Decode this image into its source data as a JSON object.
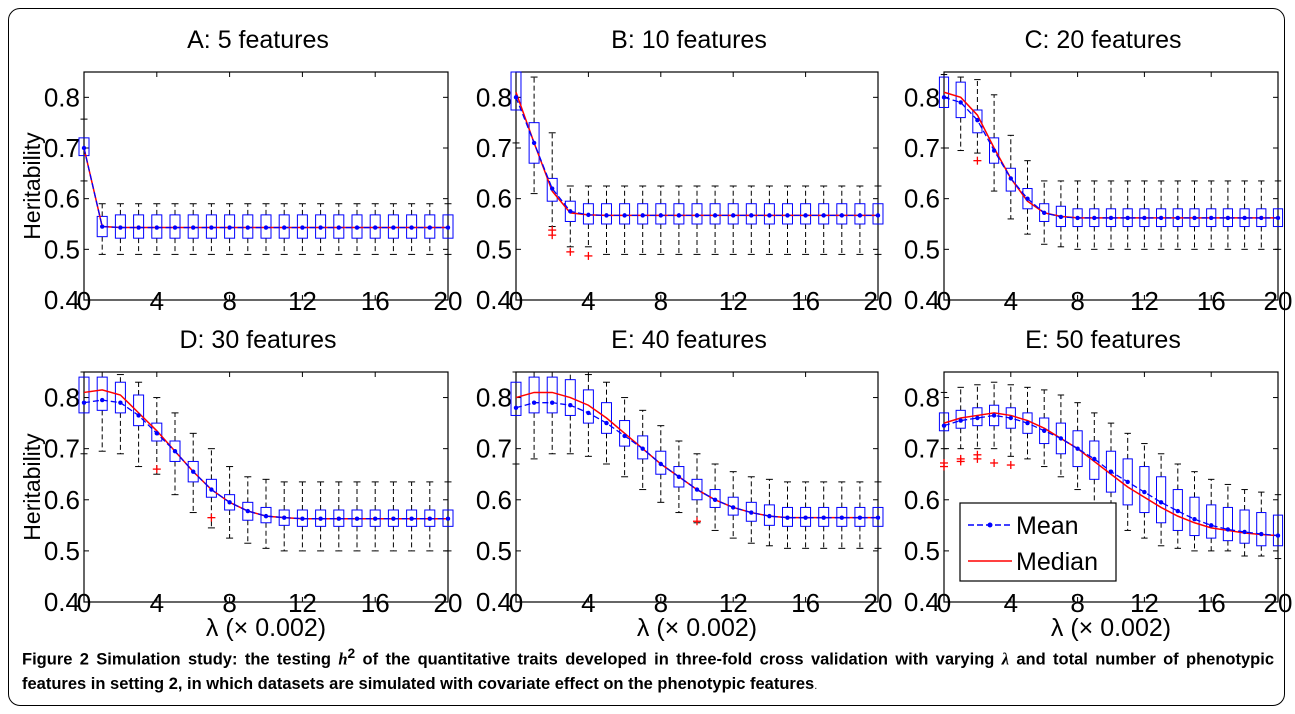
{
  "chart_data": [
    {
      "type": "box",
      "title": "A: 5 features",
      "ylabel": "Heritability",
      "xlabel": "",
      "xlim": [
        0,
        20
      ],
      "ylim": [
        0.4,
        0.85
      ],
      "xticks": [
        0,
        4,
        8,
        12,
        16,
        20
      ],
      "yticks": [
        0.4,
        0.5,
        0.6,
        0.7,
        0.8
      ],
      "x": [
        0,
        1,
        2,
        3,
        4,
        5,
        6,
        7,
        8,
        9,
        10,
        11,
        12,
        13,
        14,
        15,
        16,
        17,
        18,
        19,
        20
      ],
      "mean": [
        0.7,
        0.545,
        0.543,
        0.543,
        0.543,
        0.543,
        0.543,
        0.543,
        0.543,
        0.543,
        0.543,
        0.543,
        0.543,
        0.543,
        0.543,
        0.543,
        0.543,
        0.543,
        0.543,
        0.543,
        0.543
      ],
      "median": [
        0.7,
        0.545,
        0.543,
        0.543,
        0.543,
        0.543,
        0.543,
        0.543,
        0.543,
        0.543,
        0.543,
        0.543,
        0.543,
        0.543,
        0.543,
        0.543,
        0.543,
        0.543,
        0.543,
        0.543,
        0.543
      ],
      "q1": [
        0.685,
        0.525,
        0.522,
        0.522,
        0.522,
        0.522,
        0.522,
        0.522,
        0.522,
        0.522,
        0.522,
        0.522,
        0.522,
        0.522,
        0.522,
        0.522,
        0.522,
        0.522,
        0.522,
        0.522,
        0.522
      ],
      "q3": [
        0.72,
        0.565,
        0.568,
        0.568,
        0.568,
        0.568,
        0.568,
        0.568,
        0.568,
        0.568,
        0.568,
        0.568,
        0.568,
        0.568,
        0.568,
        0.568,
        0.568,
        0.568,
        0.568,
        0.568,
        0.568
      ],
      "lo": [
        0.635,
        0.49,
        0.49,
        0.49,
        0.49,
        0.49,
        0.49,
        0.49,
        0.49,
        0.49,
        0.49,
        0.49,
        0.49,
        0.49,
        0.49,
        0.49,
        0.49,
        0.49,
        0.49,
        0.49,
        0.49
      ],
      "hi": [
        0.757,
        0.59,
        0.59,
        0.59,
        0.59,
        0.59,
        0.59,
        0.59,
        0.59,
        0.59,
        0.59,
        0.59,
        0.59,
        0.59,
        0.59,
        0.59,
        0.59,
        0.59,
        0.59,
        0.59,
        0.59
      ],
      "outliers": []
    },
    {
      "type": "box",
      "title": "B: 10 features",
      "ylabel": "",
      "xlabel": "",
      "xlim": [
        0,
        20
      ],
      "ylim": [
        0.4,
        0.85
      ],
      "xticks": [
        0,
        4,
        8,
        12,
        16,
        20
      ],
      "yticks": [
        0.4,
        0.5,
        0.6,
        0.7,
        0.8
      ],
      "x": [
        0,
        1,
        2,
        3,
        4,
        5,
        6,
        7,
        8,
        9,
        10,
        11,
        12,
        13,
        14,
        15,
        16,
        17,
        18,
        19,
        20
      ],
      "mean": [
        0.8,
        0.71,
        0.62,
        0.575,
        0.568,
        0.567,
        0.567,
        0.567,
        0.567,
        0.567,
        0.567,
        0.567,
        0.567,
        0.567,
        0.567,
        0.567,
        0.567,
        0.567,
        0.567,
        0.567,
        0.567
      ],
      "median": [
        0.81,
        0.71,
        0.615,
        0.572,
        0.568,
        0.567,
        0.567,
        0.567,
        0.567,
        0.567,
        0.567,
        0.567,
        0.567,
        0.567,
        0.567,
        0.567,
        0.567,
        0.567,
        0.567,
        0.567,
        0.567
      ],
      "q1": [
        0.775,
        0.67,
        0.595,
        0.555,
        0.55,
        0.55,
        0.55,
        0.55,
        0.55,
        0.55,
        0.55,
        0.55,
        0.55,
        0.55,
        0.55,
        0.55,
        0.55,
        0.55,
        0.55,
        0.55,
        0.55
      ],
      "q3": [
        0.85,
        0.75,
        0.64,
        0.595,
        0.59,
        0.59,
        0.59,
        0.59,
        0.59,
        0.59,
        0.59,
        0.59,
        0.59,
        0.59,
        0.59,
        0.59,
        0.59,
        0.59,
        0.59,
        0.59,
        0.59
      ],
      "lo": [
        0.71,
        0.61,
        0.545,
        0.505,
        0.505,
        0.49,
        0.49,
        0.49,
        0.49,
        0.49,
        0.49,
        0.49,
        0.49,
        0.49,
        0.49,
        0.49,
        0.49,
        0.49,
        0.49,
        0.49,
        0.49
      ],
      "hi": [
        0.85,
        0.84,
        0.73,
        0.625,
        0.625,
        0.625,
        0.625,
        0.625,
        0.625,
        0.625,
        0.625,
        0.625,
        0.625,
        0.625,
        0.625,
        0.625,
        0.625,
        0.625,
        0.625,
        0.625,
        0.625
      ],
      "outliers": [
        [
          2,
          0.528
        ],
        [
          2,
          0.538
        ],
        [
          3,
          0.495
        ],
        [
          4,
          0.487
        ]
      ]
    },
    {
      "type": "box",
      "title": "C: 20 features",
      "ylabel": "",
      "xlabel": "",
      "xlim": [
        0,
        20
      ],
      "ylim": [
        0.4,
        0.85
      ],
      "xticks": [
        0,
        4,
        8,
        12,
        16,
        20
      ],
      "yticks": [
        0.4,
        0.5,
        0.6,
        0.7,
        0.8
      ],
      "x": [
        0,
        1,
        2,
        3,
        4,
        5,
        6,
        7,
        8,
        9,
        10,
        11,
        12,
        13,
        14,
        15,
        16,
        17,
        18,
        19,
        20
      ],
      "mean": [
        0.8,
        0.79,
        0.755,
        0.695,
        0.64,
        0.6,
        0.572,
        0.564,
        0.562,
        0.562,
        0.562,
        0.562,
        0.562,
        0.562,
        0.562,
        0.562,
        0.562,
        0.562,
        0.562,
        0.562,
        0.562
      ],
      "median": [
        0.81,
        0.8,
        0.765,
        0.7,
        0.64,
        0.595,
        0.572,
        0.565,
        0.562,
        0.562,
        0.562,
        0.562,
        0.562,
        0.562,
        0.562,
        0.562,
        0.562,
        0.562,
        0.562,
        0.562,
        0.562
      ],
      "q1": [
        0.78,
        0.76,
        0.73,
        0.67,
        0.615,
        0.58,
        0.555,
        0.545,
        0.545,
        0.545,
        0.545,
        0.545,
        0.545,
        0.545,
        0.545,
        0.545,
        0.545,
        0.545,
        0.545,
        0.545,
        0.545
      ],
      "q3": [
        0.84,
        0.83,
        0.775,
        0.72,
        0.66,
        0.62,
        0.59,
        0.585,
        0.58,
        0.58,
        0.58,
        0.58,
        0.58,
        0.58,
        0.58,
        0.58,
        0.58,
        0.58,
        0.58,
        0.58,
        0.58
      ],
      "lo": [
        0.7,
        0.695,
        0.69,
        0.615,
        0.56,
        0.53,
        0.51,
        0.505,
        0.5,
        0.5,
        0.5,
        0.5,
        0.5,
        0.5,
        0.5,
        0.5,
        0.5,
        0.5,
        0.5,
        0.5,
        0.5
      ],
      "hi": [
        0.845,
        0.84,
        0.835,
        0.805,
        0.725,
        0.675,
        0.635,
        0.635,
        0.635,
        0.635,
        0.635,
        0.635,
        0.635,
        0.635,
        0.635,
        0.635,
        0.635,
        0.635,
        0.635,
        0.635,
        0.635
      ],
      "outliers": [
        [
          2,
          0.675
        ]
      ]
    },
    {
      "type": "box",
      "title": "D: 30 features",
      "ylabel": "Heritability",
      "xlabel": "λ (× 0.002)",
      "xlim": [
        0,
        20
      ],
      "ylim": [
        0.4,
        0.85
      ],
      "xticks": [
        0,
        4,
        8,
        12,
        16,
        20
      ],
      "yticks": [
        0.4,
        0.5,
        0.6,
        0.7,
        0.8
      ],
      "x": [
        0,
        1,
        2,
        3,
        4,
        5,
        6,
        7,
        8,
        9,
        10,
        11,
        12,
        13,
        14,
        15,
        16,
        17,
        18,
        19,
        20
      ],
      "mean": [
        0.79,
        0.795,
        0.79,
        0.765,
        0.73,
        0.695,
        0.655,
        0.62,
        0.595,
        0.578,
        0.568,
        0.565,
        0.563,
        0.563,
        0.563,
        0.563,
        0.563,
        0.563,
        0.563,
        0.563,
        0.563
      ],
      "median": [
        0.81,
        0.815,
        0.805,
        0.77,
        0.735,
        0.695,
        0.655,
        0.62,
        0.595,
        0.578,
        0.568,
        0.565,
        0.563,
        0.563,
        0.563,
        0.563,
        0.563,
        0.563,
        0.563,
        0.563,
        0.563
      ],
      "q1": [
        0.77,
        0.775,
        0.77,
        0.745,
        0.715,
        0.675,
        0.635,
        0.605,
        0.58,
        0.56,
        0.555,
        0.55,
        0.548,
        0.548,
        0.548,
        0.548,
        0.548,
        0.548,
        0.548,
        0.548,
        0.548
      ],
      "q3": [
        0.84,
        0.84,
        0.83,
        0.805,
        0.75,
        0.715,
        0.675,
        0.64,
        0.61,
        0.595,
        0.585,
        0.58,
        0.58,
        0.58,
        0.58,
        0.58,
        0.58,
        0.58,
        0.58,
        0.58,
        0.58
      ],
      "lo": [
        0.69,
        0.695,
        0.69,
        0.665,
        0.65,
        0.61,
        0.575,
        0.545,
        0.525,
        0.515,
        0.505,
        0.5,
        0.5,
        0.5,
        0.5,
        0.5,
        0.5,
        0.5,
        0.5,
        0.5,
        0.5
      ],
      "hi": [
        0.85,
        0.85,
        0.845,
        0.83,
        0.8,
        0.77,
        0.73,
        0.7,
        0.665,
        0.645,
        0.64,
        0.635,
        0.635,
        0.635,
        0.635,
        0.635,
        0.635,
        0.635,
        0.635,
        0.635,
        0.635
      ],
      "outliers": [
        [
          4,
          0.66
        ],
        [
          7,
          0.565
        ]
      ]
    },
    {
      "type": "box",
      "title": "E: 40 features",
      "ylabel": "",
      "xlabel": "λ (× 0.002)",
      "xlim": [
        0,
        20
      ],
      "ylim": [
        0.4,
        0.85
      ],
      "xticks": [
        0,
        4,
        8,
        12,
        16,
        20
      ],
      "yticks": [
        0.4,
        0.5,
        0.6,
        0.7,
        0.8
      ],
      "x": [
        0,
        1,
        2,
        3,
        4,
        5,
        6,
        7,
        8,
        9,
        10,
        11,
        12,
        13,
        14,
        15,
        16,
        17,
        18,
        19,
        20
      ],
      "mean": [
        0.78,
        0.79,
        0.79,
        0.785,
        0.77,
        0.75,
        0.725,
        0.7,
        0.67,
        0.645,
        0.62,
        0.6,
        0.585,
        0.575,
        0.568,
        0.565,
        0.565,
        0.565,
        0.565,
        0.565,
        0.565
      ],
      "median": [
        0.8,
        0.81,
        0.81,
        0.8,
        0.785,
        0.76,
        0.73,
        0.7,
        0.67,
        0.645,
        0.62,
        0.6,
        0.585,
        0.575,
        0.568,
        0.565,
        0.565,
        0.565,
        0.565,
        0.565,
        0.565
      ],
      "q1": [
        0.765,
        0.77,
        0.77,
        0.765,
        0.75,
        0.73,
        0.705,
        0.68,
        0.65,
        0.625,
        0.6,
        0.585,
        0.57,
        0.558,
        0.55,
        0.548,
        0.548,
        0.548,
        0.548,
        0.548,
        0.548
      ],
      "q3": [
        0.83,
        0.84,
        0.84,
        0.835,
        0.815,
        0.79,
        0.755,
        0.725,
        0.695,
        0.665,
        0.64,
        0.62,
        0.605,
        0.595,
        0.59,
        0.585,
        0.585,
        0.585,
        0.585,
        0.585,
        0.585
      ],
      "lo": [
        0.67,
        0.68,
        0.69,
        0.69,
        0.685,
        0.67,
        0.645,
        0.62,
        0.595,
        0.575,
        0.555,
        0.54,
        0.525,
        0.515,
        0.51,
        0.505,
        0.505,
        0.505,
        0.505,
        0.505,
        0.505
      ],
      "hi": [
        0.85,
        0.85,
        0.85,
        0.85,
        0.845,
        0.83,
        0.8,
        0.775,
        0.745,
        0.715,
        0.69,
        0.67,
        0.655,
        0.645,
        0.64,
        0.635,
        0.635,
        0.635,
        0.635,
        0.635,
        0.635
      ],
      "outliers": [
        [
          10,
          0.558
        ]
      ]
    },
    {
      "type": "box",
      "title": "E: 50 features",
      "ylabel": "",
      "xlabel": "λ (× 0.002)",
      "xlim": [
        0,
        20
      ],
      "ylim": [
        0.4,
        0.85
      ],
      "xticks": [
        0,
        4,
        8,
        12,
        16,
        20
      ],
      "yticks": [
        0.4,
        0.5,
        0.6,
        0.7,
        0.8
      ],
      "x": [
        0,
        1,
        2,
        3,
        4,
        5,
        6,
        7,
        8,
        9,
        10,
        11,
        12,
        13,
        14,
        15,
        16,
        17,
        18,
        19,
        20
      ],
      "mean": [
        0.745,
        0.755,
        0.76,
        0.765,
        0.76,
        0.75,
        0.735,
        0.72,
        0.7,
        0.68,
        0.655,
        0.635,
        0.615,
        0.595,
        0.578,
        0.562,
        0.55,
        0.542,
        0.537,
        0.533,
        0.53
      ],
      "median": [
        0.75,
        0.76,
        0.765,
        0.77,
        0.765,
        0.755,
        0.74,
        0.72,
        0.7,
        0.675,
        0.65,
        0.625,
        0.605,
        0.585,
        0.568,
        0.555,
        0.545,
        0.54,
        0.535,
        0.532,
        0.53
      ],
      "q1": [
        0.735,
        0.74,
        0.745,
        0.745,
        0.74,
        0.73,
        0.71,
        0.69,
        0.665,
        0.64,
        0.615,
        0.59,
        0.575,
        0.555,
        0.54,
        0.53,
        0.525,
        0.52,
        0.515,
        0.51,
        0.51
      ],
      "q3": [
        0.77,
        0.775,
        0.78,
        0.785,
        0.78,
        0.77,
        0.76,
        0.75,
        0.735,
        0.715,
        0.695,
        0.68,
        0.665,
        0.645,
        0.62,
        0.605,
        0.59,
        0.585,
        0.58,
        0.575,
        0.57
      ],
      "lo": [
        0.7,
        0.7,
        0.7,
        0.7,
        0.685,
        0.68,
        0.665,
        0.645,
        0.62,
        0.59,
        0.56,
        0.54,
        0.525,
        0.51,
        0.505,
        0.5,
        0.5,
        0.5,
        0.49,
        0.49,
        0.485
      ],
      "hi": [
        0.81,
        0.82,
        0.825,
        0.83,
        0.825,
        0.82,
        0.815,
        0.805,
        0.79,
        0.77,
        0.75,
        0.73,
        0.71,
        0.69,
        0.67,
        0.655,
        0.64,
        0.63,
        0.62,
        0.615,
        0.61
      ],
      "outliers": [
        [
          0,
          0.665
        ],
        [
          0,
          0.672
        ],
        [
          1,
          0.675
        ],
        [
          1,
          0.68
        ],
        [
          2,
          0.68
        ],
        [
          2,
          0.688
        ],
        [
          3,
          0.672
        ],
        [
          4,
          0.668
        ]
      ],
      "legend": {
        "position": "bottom-left",
        "entries": [
          "Mean",
          "Median"
        ]
      }
    }
  ],
  "colors": {
    "mean": "#0000ff",
    "median": "#ff0000",
    "box": "#0000ff",
    "whisker": "#000000",
    "outlier": "#ff0000"
  },
  "caption": {
    "label": "Figure 2",
    "text_before": " Simulation study: the testing ",
    "h": "h",
    "sup": "2",
    "text_mid": " of the quantitative traits developed in three-fold cross validation with varying ",
    "lambda": "λ",
    "text_after": " and total number of phenotypic features in setting 2, in which datasets are simulated with covariate effect on the phenotypic features",
    "tail": "."
  }
}
